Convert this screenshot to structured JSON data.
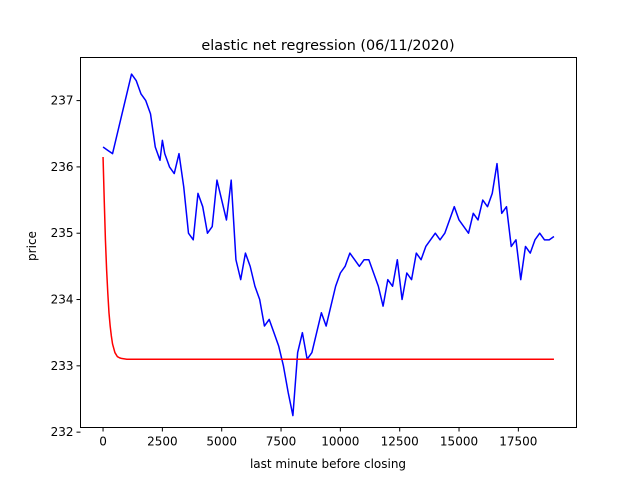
{
  "chart_data": {
    "type": "line",
    "title": "elastic net regression (06/11/2020)",
    "xlabel": "last minute before closing",
    "ylabel": "price",
    "xlim": [
      -950,
      19950
    ],
    "ylim": [
      232.07,
      237.65
    ],
    "xticks": [
      0,
      2500,
      5000,
      7500,
      10000,
      12500,
      15000,
      17500
    ],
    "xtick_labels": [
      "0",
      "2500",
      "5000",
      "7500",
      "10000",
      "12500",
      "15000",
      "17500"
    ],
    "yticks": [
      232,
      233,
      234,
      235,
      236,
      237
    ],
    "ytick_labels": [
      "232",
      "233",
      "234",
      "235",
      "236",
      "237"
    ],
    "grid": false,
    "series": [
      {
        "color": "#0000ff",
        "x": [
          0,
          200,
          400,
          600,
          800,
          1000,
          1200,
          1400,
          1600,
          1800,
          2000,
          2200,
          2400,
          2500,
          2600,
          2800,
          3000,
          3200,
          3400,
          3600,
          3800,
          4000,
          4200,
          4400,
          4600,
          4800,
          5000,
          5200,
          5400,
          5600,
          5800,
          6000,
          6200,
          6400,
          6600,
          6800,
          7000,
          7200,
          7400,
          7600,
          7800,
          8000,
          8200,
          8400,
          8600,
          8800,
          9000,
          9200,
          9400,
          9600,
          9800,
          10000,
          10200,
          10400,
          10600,
          10800,
          11000,
          11200,
          11400,
          11600,
          11800,
          12000,
          12200,
          12400,
          12600,
          12800,
          13000,
          13200,
          13400,
          13600,
          13800,
          14000,
          14200,
          14400,
          14600,
          14800,
          15000,
          15200,
          15400,
          15600,
          15800,
          16000,
          16200,
          16400,
          16600,
          16800,
          17000,
          17200,
          17400,
          17600,
          17800,
          18000,
          18200,
          18400,
          18600,
          18800,
          19000
        ],
        "y": [
          236.3,
          236.25,
          236.2,
          236.5,
          236.8,
          237.1,
          237.4,
          237.3,
          237.1,
          237.0,
          236.8,
          236.3,
          236.1,
          236.4,
          236.2,
          236.0,
          235.9,
          236.2,
          235.7,
          235.0,
          234.9,
          235.6,
          235.4,
          235.0,
          235.1,
          235.8,
          235.5,
          235.2,
          235.8,
          234.6,
          234.3,
          234.7,
          234.5,
          234.2,
          234.0,
          233.6,
          233.7,
          233.5,
          233.3,
          233.0,
          232.6,
          232.25,
          233.2,
          233.5,
          233.1,
          233.2,
          233.5,
          233.8,
          233.6,
          233.9,
          234.2,
          234.4,
          234.5,
          234.7,
          234.6,
          234.5,
          234.6,
          234.6,
          234.4,
          234.2,
          233.9,
          234.3,
          234.2,
          234.6,
          234.0,
          234.4,
          234.3,
          234.7,
          234.6,
          234.8,
          234.9,
          235.0,
          234.9,
          235.0,
          235.2,
          235.4,
          235.2,
          235.1,
          235.0,
          235.3,
          235.2,
          235.5,
          235.4,
          235.6,
          236.05,
          235.3,
          235.4,
          234.8,
          234.9,
          234.3,
          234.8,
          234.7,
          234.9,
          235.0,
          234.9,
          234.9,
          234.95
        ]
      },
      {
        "color": "#ff0000",
        "x": [
          0,
          50,
          100,
          150,
          200,
          250,
          300,
          350,
          400,
          500,
          600,
          700,
          800,
          1000,
          1500,
          2000,
          5000,
          10000,
          15000,
          19000
        ],
        "y": [
          236.15,
          235.5,
          234.9,
          234.45,
          234.1,
          233.8,
          233.6,
          233.45,
          233.33,
          233.2,
          233.14,
          233.12,
          233.11,
          233.1,
          233.1,
          233.1,
          233.1,
          233.1,
          233.1,
          233.1
        ]
      }
    ]
  }
}
